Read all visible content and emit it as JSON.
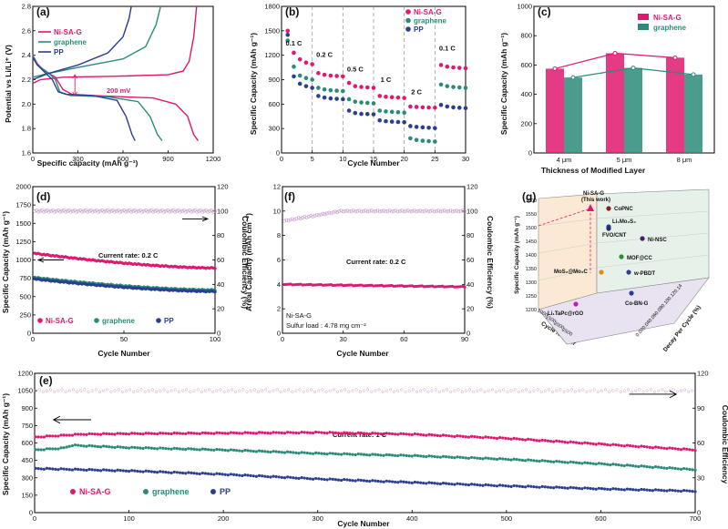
{
  "colors": {
    "nisag": "#e0196f",
    "graphene": "#2a8b78",
    "pp": "#2b3e91",
    "ce": "#c8a0c8",
    "arrow": "#000000"
  },
  "chart_data": [
    {
      "id": "a",
      "panel_label": "(a)",
      "type": "line",
      "xlabel": "Specific capacity (mAh g⁻¹)",
      "ylabel": "Potential vs Li/Li⁺ (V)",
      "xlim": [
        0,
        1200
      ],
      "ylim": [
        1.6,
        2.8
      ],
      "xticks": [
        0,
        300,
        600,
        900,
        1200
      ],
      "yticks": [
        1.6,
        1.8,
        2.0,
        2.2,
        2.4,
        2.6,
        2.8
      ],
      "legend": [
        "Ni-SA-G",
        "graphene",
        "PP"
      ],
      "annotation": "200 mV",
      "series": [
        {
          "name": "Ni-SA-G",
          "color": "nisag",
          "discharge": [
            [
              0,
              2.4
            ],
            [
              30,
              2.33
            ],
            [
              80,
              2.27
            ],
            [
              150,
              2.22
            ],
            [
              200,
              2.12
            ],
            [
              260,
              2.08
            ],
            [
              400,
              2.07
            ],
            [
              600,
              2.06
            ],
            [
              800,
              2.05
            ],
            [
              950,
              2.0
            ],
            [
              1030,
              1.9
            ],
            [
              1070,
              1.75
            ],
            [
              1100,
              1.7
            ]
          ],
          "charge": [
            [
              0,
              2.17
            ],
            [
              50,
              2.2
            ],
            [
              200,
              2.22
            ],
            [
              600,
              2.23
            ],
            [
              900,
              2.24
            ],
            [
              1000,
              2.27
            ],
            [
              1040,
              2.35
            ],
            [
              1070,
              2.55
            ],
            [
              1090,
              2.8
            ]
          ]
        },
        {
          "name": "graphene",
          "color": "graphene",
          "discharge": [
            [
              0,
              2.4
            ],
            [
              30,
              2.32
            ],
            [
              100,
              2.26
            ],
            [
              150,
              2.2
            ],
            [
              180,
              2.1
            ],
            [
              250,
              2.07
            ],
            [
              500,
              2.06
            ],
            [
              700,
              2.02
            ],
            [
              780,
              1.9
            ],
            [
              830,
              1.75
            ],
            [
              860,
              1.7
            ]
          ],
          "charge": [
            [
              0,
              2.22
            ],
            [
              100,
              2.25
            ],
            [
              300,
              2.3
            ],
            [
              600,
              2.37
            ],
            [
              750,
              2.47
            ],
            [
              820,
              2.65
            ],
            [
              850,
              2.8
            ]
          ]
        },
        {
          "name": "PP",
          "color": "pp",
          "discharge": [
            [
              0,
              2.38
            ],
            [
              30,
              2.32
            ],
            [
              80,
              2.26
            ],
            [
              130,
              2.2
            ],
            [
              170,
              2.1
            ],
            [
              220,
              2.08
            ],
            [
              400,
              2.07
            ],
            [
              560,
              2.03
            ],
            [
              620,
              1.9
            ],
            [
              660,
              1.75
            ],
            [
              680,
              1.7
            ]
          ],
          "charge": [
            [
              0,
              2.2
            ],
            [
              100,
              2.25
            ],
            [
              300,
              2.32
            ],
            [
              500,
              2.42
            ],
            [
              600,
              2.55
            ],
            [
              640,
              2.7
            ],
            [
              655,
              2.8
            ]
          ]
        }
      ]
    },
    {
      "id": "b",
      "panel_label": "(b)",
      "type": "scatter",
      "xlabel": "Cycle Number",
      "ylabel": "Specific Capacity (mAh g⁻¹)",
      "xlim": [
        0,
        30
      ],
      "ylim": [
        0,
        1800
      ],
      "xticks": [
        0,
        5,
        10,
        15,
        20,
        25,
        30
      ],
      "yticks": [
        0,
        300,
        600,
        900,
        1200,
        1500,
        1800
      ],
      "legend": [
        "Ni-SA-G",
        "graphene",
        "PP"
      ],
      "rate_labels": [
        {
          "text": "0.1 C",
          "x": 2,
          "y": 1320
        },
        {
          "text": "0.2 C",
          "x": 7,
          "y": 1180
        },
        {
          "text": "0.5 C",
          "x": 12,
          "y": 1000
        },
        {
          "text": "1 C",
          "x": 17,
          "y": 870
        },
        {
          "text": "2 C",
          "x": 22,
          "y": 720
        },
        {
          "text": "0.1 C",
          "x": 27,
          "y": 1260
        }
      ],
      "dividers": [
        5,
        10,
        15,
        20,
        25
      ],
      "series": [
        {
          "name": "Ni-SA-G",
          "color": "nisag",
          "values": [
            1500,
            1230,
            1150,
            1110,
            1090,
            980,
            960,
            950,
            945,
            940,
            860,
            820,
            810,
            805,
            800,
            700,
            690,
            685,
            680,
            675,
            570,
            565,
            560,
            558,
            556,
            1080,
            1060,
            1050,
            1045,
            1040
          ]
        },
        {
          "name": "graphene",
          "color": "graphene",
          "values": [
            1380,
            1060,
            950,
            920,
            900,
            800,
            780,
            770,
            765,
            760,
            660,
            630,
            620,
            615,
            610,
            520,
            510,
            505,
            500,
            495,
            180,
            160,
            150,
            145,
            140,
            840,
            820,
            810,
            805,
            800
          ]
        },
        {
          "name": "PP",
          "color": "pp",
          "values": [
            1450,
            940,
            850,
            820,
            800,
            700,
            680,
            670,
            665,
            660,
            520,
            490,
            480,
            478,
            475,
            400,
            390,
            385,
            380,
            378,
            330,
            320,
            315,
            310,
            305,
            590,
            570,
            560,
            555,
            550
          ]
        }
      ]
    },
    {
      "id": "c",
      "panel_label": "(c)",
      "type": "bar",
      "xlabel": "Thickness of Modified Layer",
      "ylabel": "Specific Capacity (mAh g⁻¹)",
      "ylim": [
        0,
        1000
      ],
      "yticks": [
        0,
        200,
        400,
        600,
        800,
        1000
      ],
      "categories": [
        "4 μm",
        "5 μm",
        "8 μm"
      ],
      "legend": [
        "Ni-SA-G",
        "graphene"
      ],
      "series": [
        {
          "name": "Ni-SA-G",
          "color": "nisag",
          "values": [
            575,
            680,
            650
          ]
        },
        {
          "name": "graphene",
          "color": "graphene",
          "values": [
            515,
            580,
            535
          ]
        }
      ]
    },
    {
      "id": "d",
      "panel_label": "(d)",
      "type": "scatter",
      "xlabel": "Cycle Number",
      "ylabel": "Specific Capacity (mAh g⁻¹)",
      "y2label": "Coulombic Efficiency (%)",
      "xlim": [
        0,
        100
      ],
      "ylim": [
        0,
        2000
      ],
      "y2lim": [
        0,
        120
      ],
      "xticks": [
        0,
        50,
        100
      ],
      "yticks": [
        0,
        250,
        500,
        750,
        1000,
        1250,
        1500,
        1750,
        2000
      ],
      "y2ticks": [
        0,
        20,
        40,
        60,
        80,
        100,
        120
      ],
      "annotation": "Current rate: 0.2 C",
      "legend": [
        "Ni-SA-G",
        "graphene",
        "PP"
      ],
      "series": [
        {
          "name": "Ni-SA-G",
          "color": "nisag",
          "start": 1090,
          "end": 890
        },
        {
          "name": "graphene",
          "color": "graphene",
          "start": 760,
          "end": 590
        },
        {
          "name": "PP",
          "color": "pp",
          "start": 740,
          "end": 570
        }
      ],
      "ce_value": 100
    },
    {
      "id": "f",
      "panel_label": "(f)",
      "type": "scatter",
      "xlabel": "Cycle Number",
      "ylabel": "Areal Capacity (mAh cm⁻²)",
      "y2label": "Coulombic Efficiency (%)",
      "xlim": [
        0,
        90
      ],
      "ylim": [
        0,
        12
      ],
      "y2lim": [
        0,
        120
      ],
      "xticks": [
        0,
        30,
        60,
        90
      ],
      "yticks": [
        0,
        2,
        4,
        6,
        8,
        10,
        12
      ],
      "y2ticks": [
        0,
        20,
        40,
        60,
        80,
        100,
        120
      ],
      "annotation": "Current rate: 0.2 C",
      "note1": "Ni-SA-G",
      "note2": "Sulfur load : 4.78 mg cm⁻²",
      "series": [
        {
          "name": "Ni-SA-G",
          "color": "nisag",
          "start": 4.0,
          "end": 3.8
        }
      ],
      "ce_start": 92,
      "ce_end": 100
    },
    {
      "id": "g",
      "panel_label": "(g)",
      "type": "scatter",
      "ylabel": "Specific Capacity (mAh g⁻¹)",
      "zlabel": "Cycle Number",
      "xlabel": "Decay Per Cycle (%)",
      "zticks": [
        1600,
        1550,
        1500,
        1450,
        1400,
        1350,
        1300,
        1250,
        1200
      ],
      "xticks_back": [
        1000,
        1500,
        2000,
        2500
      ],
      "decay_ticks": [
        0.02,
        0.04,
        0.06,
        0.08,
        0.1,
        0.12,
        0.14
      ],
      "points": [
        {
          "name": "Ni-SA-G",
          "sub": "(This work)",
          "color": "#e0196f"
        },
        {
          "name": "CoPNC",
          "color": "#8b1e1e"
        },
        {
          "name": "Li₁Mo₂S₄",
          "color": "#2b3e91"
        },
        {
          "name": "FVO/CNT",
          "color": "#2a2a6b"
        },
        {
          "name": "Ni-NSC",
          "color": "#4c1c6e"
        },
        {
          "name": "MOF@CC",
          "color": "#2b8c3a"
        },
        {
          "name": "MoS₂@Mo₂C",
          "color": "#e08a1e"
        },
        {
          "name": "w-PBDT",
          "color": "#2b3e91"
        },
        {
          "name": "Co-BN-G",
          "color": "#2b3e91"
        },
        {
          "name": "Li₁TaPc@rGO",
          "color": "#c01ec0"
        }
      ]
    },
    {
      "id": "e",
      "panel_label": "(e)",
      "type": "scatter",
      "xlabel": "Cycle Number",
      "ylabel": "Specific Capacity (mAh g⁻¹)",
      "y2label": "Coulombic Efficiency",
      "xlim": [
        0,
        700
      ],
      "ylim": [
        0,
        1200
      ],
      "y2lim": [
        0,
        120
      ],
      "xticks": [
        0,
        100,
        200,
        300,
        400,
        500,
        600,
        700
      ],
      "yticks": [
        0,
        150,
        300,
        450,
        600,
        750,
        900,
        1050,
        1200
      ],
      "y2ticks": [
        0,
        30,
        60,
        90,
        120
      ],
      "annotation": "Current rate: 1 C",
      "legend": [
        "Ni-SA-G",
        "graphene",
        "PP"
      ],
      "series": [
        {
          "name": "Ni-SA-G",
          "color": "nisag",
          "points": [
            [
              0,
              650
            ],
            [
              50,
              675
            ],
            [
              100,
              680
            ],
            [
              200,
              685
            ],
            [
              300,
              690
            ],
            [
              400,
              675
            ],
            [
              500,
              640
            ],
            [
              600,
              590
            ],
            [
              700,
              540
            ]
          ]
        },
        {
          "name": "graphene",
          "color": "graphene",
          "points": [
            [
              0,
              540
            ],
            [
              30,
              555
            ],
            [
              40,
              580
            ],
            [
              100,
              560
            ],
            [
              200,
              540
            ],
            [
              300,
              510
            ],
            [
              400,
              490
            ],
            [
              500,
              460
            ],
            [
              600,
              420
            ],
            [
              700,
              370
            ]
          ]
        },
        {
          "name": "PP",
          "color": "pp",
          "points": [
            [
              0,
              380
            ],
            [
              100,
              360
            ],
            [
              200,
              330
            ],
            [
              300,
              290
            ],
            [
              400,
              260
            ],
            [
              500,
              230
            ],
            [
              600,
              205
            ],
            [
              700,
              185
            ]
          ]
        }
      ],
      "ce_value": 105
    }
  ]
}
